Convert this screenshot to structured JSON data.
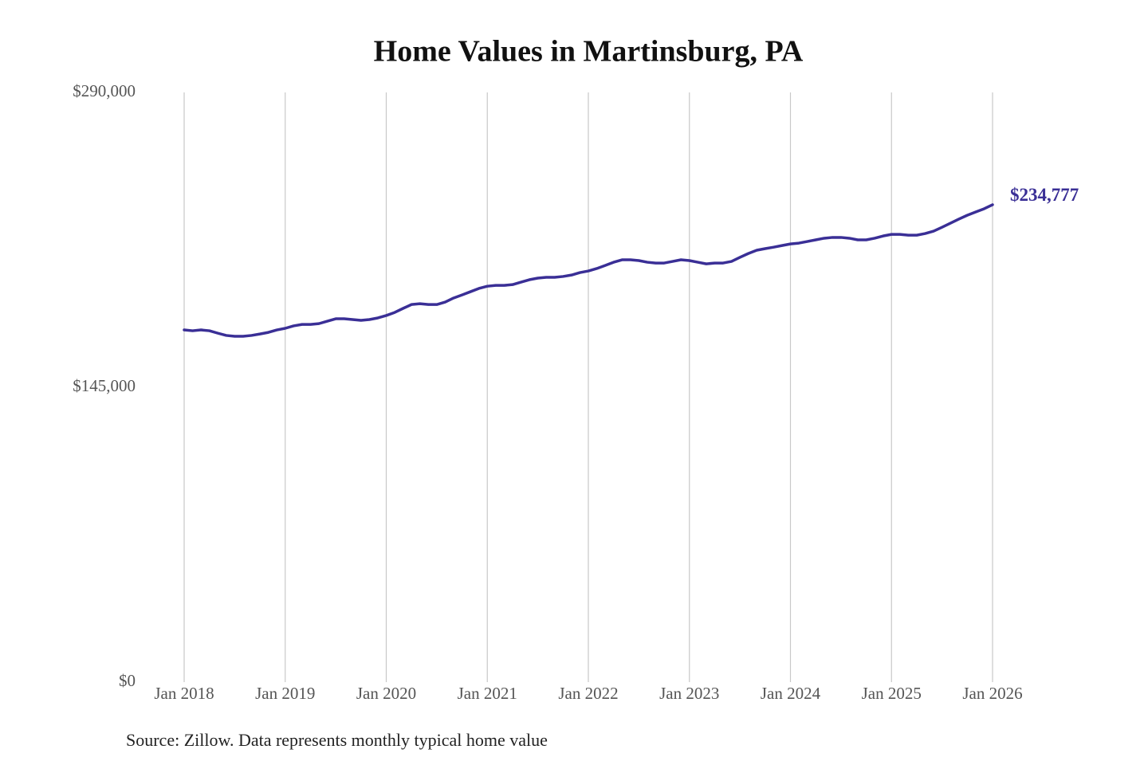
{
  "chart_data": {
    "type": "line",
    "title": "Home Values in Martinsburg, PA",
    "source": "Source: Zillow. Data represents monthly typical home value",
    "color": "#3a2f96",
    "grid": true,
    "ylim": [
      0,
      290000
    ],
    "yticks": [
      {
        "value": 0,
        "label": "$0"
      },
      {
        "value": 145000,
        "label": "$145,000"
      },
      {
        "value": 290000,
        "label": "$290,000"
      }
    ],
    "xlim": [
      "2018-01",
      "2026-01"
    ],
    "xticks": [
      {
        "value": "2018-01",
        "label": "Jan 2018"
      },
      {
        "value": "2019-01",
        "label": "Jan 2019"
      },
      {
        "value": "2020-01",
        "label": "Jan 2020"
      },
      {
        "value": "2021-01",
        "label": "Jan 2021"
      },
      {
        "value": "2022-01",
        "label": "Jan 2022"
      },
      {
        "value": "2023-01",
        "label": "Jan 2023"
      },
      {
        "value": "2024-01",
        "label": "Jan 2024"
      },
      {
        "value": "2025-01",
        "label": "Jan 2025"
      },
      {
        "value": "2026-01",
        "label": "Jan 2026"
      }
    ],
    "x": [
      "2018-01",
      "2018-02",
      "2018-03",
      "2018-04",
      "2018-05",
      "2018-06",
      "2018-07",
      "2018-08",
      "2018-09",
      "2018-10",
      "2018-11",
      "2018-12",
      "2019-01",
      "2019-02",
      "2019-03",
      "2019-04",
      "2019-05",
      "2019-06",
      "2019-07",
      "2019-08",
      "2019-09",
      "2019-10",
      "2019-11",
      "2019-12",
      "2020-01",
      "2020-02",
      "2020-03",
      "2020-04",
      "2020-05",
      "2020-06",
      "2020-07",
      "2020-08",
      "2020-09",
      "2020-10",
      "2020-11",
      "2020-12",
      "2021-01",
      "2021-02",
      "2021-03",
      "2021-04",
      "2021-05",
      "2021-06",
      "2021-07",
      "2021-08",
      "2021-09",
      "2021-10",
      "2021-11",
      "2021-12",
      "2022-01",
      "2022-02",
      "2022-03",
      "2022-04",
      "2022-05",
      "2022-06",
      "2022-07",
      "2022-08",
      "2022-09",
      "2022-10",
      "2022-11",
      "2022-12",
      "2023-01",
      "2023-02",
      "2023-03",
      "2023-04",
      "2023-05",
      "2023-06",
      "2023-07",
      "2023-08",
      "2023-09",
      "2023-10",
      "2023-11",
      "2023-12",
      "2024-01",
      "2024-02",
      "2024-03",
      "2024-04",
      "2024-05",
      "2024-06",
      "2024-07",
      "2024-08",
      "2024-09",
      "2024-10",
      "2024-11",
      "2024-12",
      "2025-01",
      "2025-02",
      "2025-03",
      "2025-04",
      "2025-05",
      "2025-06",
      "2025-07",
      "2025-08",
      "2025-09",
      "2025-10",
      "2025-11",
      "2025-12",
      "2026-01"
    ],
    "values": [
      173200,
      172800,
      173200,
      172800,
      171600,
      170500,
      170100,
      170100,
      170500,
      171200,
      172000,
      173200,
      174000,
      175200,
      175900,
      175900,
      176300,
      177500,
      178700,
      178700,
      178300,
      177900,
      178300,
      179100,
      180300,
      181800,
      183800,
      185700,
      186100,
      185700,
      185700,
      186900,
      188900,
      190400,
      192000,
      193600,
      194700,
      195100,
      195100,
      195500,
      196700,
      197900,
      198700,
      199100,
      199100,
      199500,
      200200,
      201400,
      202200,
      203400,
      204900,
      206500,
      207700,
      207700,
      207300,
      206500,
      206100,
      206100,
      206900,
      207700,
      207300,
      206500,
      205700,
      206100,
      206100,
      206900,
      208900,
      210800,
      212400,
      213200,
      213900,
      214700,
      215500,
      215900,
      216700,
      217500,
      218300,
      218700,
      218700,
      218300,
      217500,
      217500,
      218300,
      219400,
      220200,
      220200,
      219800,
      219800,
      220600,
      221800,
      223700,
      225700,
      227700,
      229600,
      231200,
      232800,
      234777
    ],
    "value_labels": [
      null,
      null,
      null,
      null,
      null,
      null,
      null,
      null,
      null,
      null,
      null,
      null,
      null,
      null,
      null,
      null,
      null,
      null,
      null,
      null,
      null,
      null,
      null,
      null,
      null,
      null,
      null,
      null,
      null,
      null,
      null,
      null,
      null,
      null,
      null,
      null,
      null,
      null,
      null,
      null,
      null,
      null,
      null,
      null,
      null,
      null,
      null,
      null,
      null,
      null,
      null,
      null,
      null,
      null,
      null,
      null,
      null,
      null,
      null,
      null,
      null,
      null,
      null,
      null,
      null,
      null,
      null,
      null,
      null,
      null,
      null,
      null,
      null,
      null,
      null,
      null,
      null,
      null,
      null,
      null,
      null,
      null,
      null,
      null,
      null,
      null,
      null,
      null,
      null,
      null,
      null,
      null,
      null,
      null,
      null,
      null,
      "$234,777"
    ]
  }
}
